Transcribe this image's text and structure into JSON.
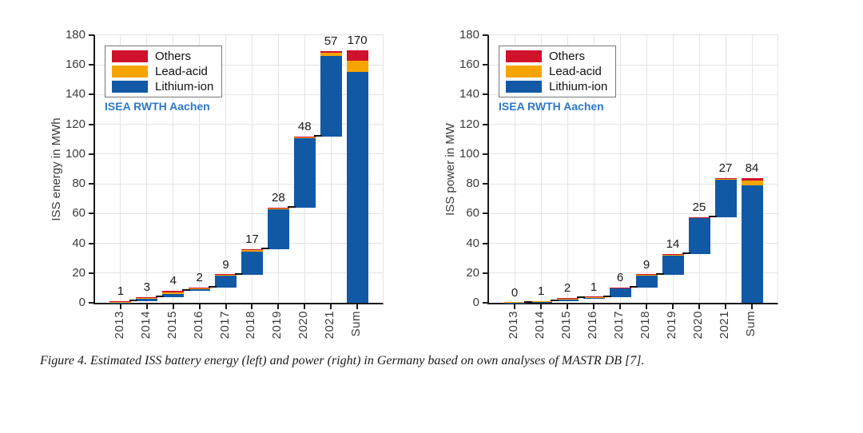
{
  "figure": {
    "caption": "Figure 4. Estimated ISS battery energy (left) and power (right) in Germany based on own analyses of MASTR DB [7]."
  },
  "watermark": "ISEA RWTH Aachen",
  "colors": {
    "others": "#D0112B",
    "lead_acid": "#F6A500",
    "lithium_ion": "#1159A5",
    "watermark_text": "#2E79C9",
    "axis": "#1A1A1A",
    "grid": "#E4E4E4",
    "connector": "#111111"
  },
  "legend": {
    "position": "top-left",
    "items": [
      {
        "label": "Others",
        "series": "others"
      },
      {
        "label": "Lead-acid",
        "series": "lead_acid"
      },
      {
        "label": "Lithium-ion",
        "series": "lithium_ion"
      }
    ]
  },
  "chart_data": [
    {
      "type": "bar",
      "subtype": "waterfall-stacked",
      "title": "",
      "xlabel": "",
      "ylabel": "ISS energy in MWh",
      "ylim": [
        0,
        180
      ],
      "yticks": [
        0,
        20,
        40,
        60,
        80,
        100,
        120,
        140,
        160,
        180
      ],
      "grid": true,
      "categories": [
        "2013",
        "2014",
        "2015",
        "2016",
        "2017",
        "2018",
        "2019",
        "2020",
        "2021",
        "Sum"
      ],
      "bar_labels": [
        "1",
        "3",
        "4",
        "2",
        "9",
        "17",
        "28",
        "48",
        "57",
        "170"
      ],
      "cumulative_levels": [
        1,
        4,
        8,
        10,
        19,
        36,
        64,
        112,
        169.5,
        170
      ],
      "bars": [
        {
          "category": "2013",
          "label": "1",
          "restart_at_zero": false,
          "segments": {
            "lithium_ion": 0.15,
            "lead_acid": 0.75,
            "others": 0.1
          }
        },
        {
          "category": "2014",
          "label": "3",
          "restart_at_zero": false,
          "segments": {
            "lithium_ion": 1.85,
            "lead_acid": 0.9,
            "others": 0.25
          }
        },
        {
          "category": "2015",
          "label": "4",
          "restart_at_zero": false,
          "segments": {
            "lithium_ion": 2.05,
            "lead_acid": 1.2,
            "others": 0.75
          }
        },
        {
          "category": "2016",
          "label": "2",
          "restart_at_zero": false,
          "segments": {
            "lithium_ion": 1.3,
            "lead_acid": 0.6,
            "others": 0.1
          }
        },
        {
          "category": "2017",
          "label": "9",
          "restart_at_zero": false,
          "segments": {
            "lithium_ion": 8.2,
            "lead_acid": 0.7,
            "others": 0.1
          }
        },
        {
          "category": "2018",
          "label": "17",
          "restart_at_zero": false,
          "segments": {
            "lithium_ion": 15.5,
            "lead_acid": 1.2,
            "others": 0.3
          }
        },
        {
          "category": "2019",
          "label": "28",
          "restart_at_zero": false,
          "segments": {
            "lithium_ion": 27.0,
            "lead_acid": 0.4,
            "others": 0.6
          }
        },
        {
          "category": "2020",
          "label": "48",
          "restart_at_zero": false,
          "segments": {
            "lithium_ion": 46.8,
            "lead_acid": 0.6,
            "others": 0.6
          }
        },
        {
          "category": "2021",
          "label": "57",
          "restart_at_zero": false,
          "segments": {
            "lithium_ion": 54.0,
            "lead_acid": 2.0,
            "others": 1.5
          }
        },
        {
          "category": "Sum",
          "label": "170",
          "restart_at_zero": true,
          "segments": {
            "lithium_ion": 155.5,
            "lead_acid": 7.5,
            "others": 7.0
          }
        }
      ]
    },
    {
      "type": "bar",
      "subtype": "waterfall-stacked",
      "title": "",
      "xlabel": "",
      "ylabel": "ISS power in MW",
      "ylim": [
        0,
        180
      ],
      "yticks": [
        0,
        20,
        40,
        60,
        80,
        100,
        120,
        140,
        160,
        180
      ],
      "grid": true,
      "categories": [
        "2013",
        "2014",
        "2015",
        "2016",
        "2017",
        "2018",
        "2019",
        "2020",
        "2021",
        "Sum"
      ],
      "bar_labels": [
        "0",
        "1",
        "2",
        "1",
        "6",
        "9",
        "14",
        "25",
        "27",
        "84"
      ],
      "cumulative_levels": [
        0.2,
        1,
        3,
        4,
        10,
        19,
        33,
        57.5,
        84,
        84
      ],
      "bars": [
        {
          "category": "2013",
          "label": "0",
          "restart_at_zero": false,
          "segments": {
            "lithium_ion": 0.1,
            "lead_acid": 0.1,
            "others": 0.0
          }
        },
        {
          "category": "2014",
          "label": "1",
          "restart_at_zero": false,
          "segments": {
            "lithium_ion": 0.7,
            "lead_acid": 0.1,
            "others": 0.0
          }
        },
        {
          "category": "2015",
          "label": "2",
          "restart_at_zero": false,
          "segments": {
            "lithium_ion": 0.9,
            "lead_acid": 1.0,
            "others": 0.1
          }
        },
        {
          "category": "2016",
          "label": "1",
          "restart_at_zero": false,
          "segments": {
            "lithium_ion": 0.3,
            "lead_acid": 0.6,
            "others": 0.1
          }
        },
        {
          "category": "2017",
          "label": "6",
          "restart_at_zero": false,
          "segments": {
            "lithium_ion": 5.7,
            "lead_acid": 0.2,
            "others": 0.1
          }
        },
        {
          "category": "2018",
          "label": "9",
          "restart_at_zero": false,
          "segments": {
            "lithium_ion": 8.4,
            "lead_acid": 0.5,
            "others": 0.1
          }
        },
        {
          "category": "2019",
          "label": "14",
          "restart_at_zero": false,
          "segments": {
            "lithium_ion": 13.2,
            "lead_acid": 0.3,
            "others": 0.5
          }
        },
        {
          "category": "2020",
          "label": "25",
          "restart_at_zero": false,
          "segments": {
            "lithium_ion": 23.8,
            "lead_acid": 0.5,
            "others": 0.2
          }
        },
        {
          "category": "2021",
          "label": "27",
          "restart_at_zero": false,
          "segments": {
            "lithium_ion": 25.3,
            "lead_acid": 0.8,
            "others": 0.4
          }
        },
        {
          "category": "Sum",
          "label": "84",
          "restart_at_zero": true,
          "segments": {
            "lithium_ion": 79.0,
            "lead_acid": 3.0,
            "others": 2.0
          }
        }
      ]
    }
  ]
}
